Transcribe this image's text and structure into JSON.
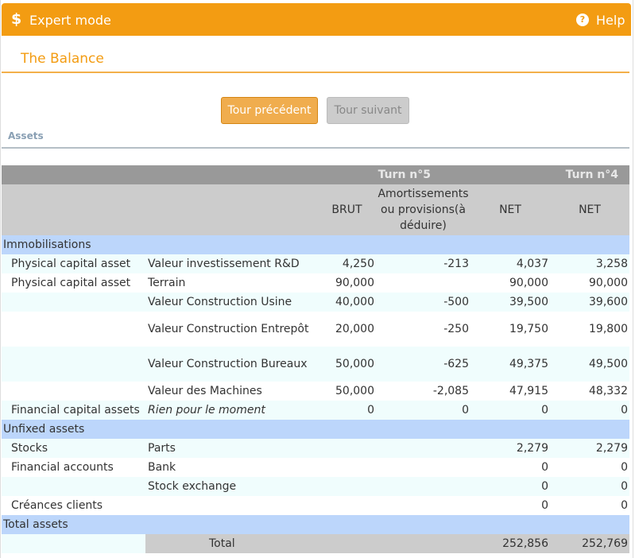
{
  "header": {
    "title": "Expert mode",
    "help": "Help"
  },
  "page_title": "The Balance",
  "buttons": {
    "prev": "Tour précédent",
    "next": "Tour suivant"
  },
  "section_label": "Assets",
  "table": {
    "turn_current": "Turn n°5",
    "turn_previous": "Turn n°4",
    "col_brut": "BRUT",
    "col_amort": "Amortissements ou provisions(à déduire)",
    "col_net": "NET",
    "col_net_prev": "NET",
    "sections": [
      {
        "name": "Immobilisations",
        "rows": [
          {
            "group": "Physical capital asset",
            "label": "Valeur investissement R&D",
            "brut": "4,250",
            "amort": "-213",
            "net": "4,037",
            "net_prev": "3,258"
          },
          {
            "group": "Physical capital asset",
            "label": "Terrain",
            "brut": "90,000",
            "amort": "",
            "net": "90,000",
            "net_prev": "90,000"
          },
          {
            "group": "",
            "label": "Valeur Construction Usine",
            "brut": "40,000",
            "amort": "-500",
            "net": "39,500",
            "net_prev": "39,600"
          },
          {
            "group": "",
            "label": "Valeur Construction Entrepôt",
            "brut": "20,000",
            "amort": "-250",
            "net": "19,750",
            "net_prev": "19,800"
          },
          {
            "group": "",
            "label": "Valeur Construction Bureaux",
            "brut": "50,000",
            "amort": "-625",
            "net": "49,375",
            "net_prev": "49,500"
          },
          {
            "group": "",
            "label": "Valeur des Machines",
            "brut": "50,000",
            "amort": "-2,085",
            "net": "47,915",
            "net_prev": "48,332"
          },
          {
            "group": "Financial capital assets",
            "label": "Rien pour le moment",
            "brut": "0",
            "amort": "0",
            "net": "0",
            "net_prev": "0"
          }
        ]
      },
      {
        "name": "Unfixed assets",
        "rows": [
          {
            "group": "Stocks",
            "label": "Parts",
            "brut": "",
            "amort": "",
            "net": "2,279",
            "net_prev": "2,279"
          },
          {
            "group": "Financial accounts",
            "label": "Bank",
            "brut": "",
            "amort": "",
            "net": "0",
            "net_prev": "0"
          },
          {
            "group": "",
            "label": "Stock exchange",
            "brut": "",
            "amort": "",
            "net": "0",
            "net_prev": "0"
          },
          {
            "group": "Créances clients",
            "label": "",
            "brut": "",
            "amort": "",
            "net": "0",
            "net_prev": "0"
          }
        ]
      },
      {
        "name": "Total assets",
        "rows": []
      }
    ],
    "total": {
      "label": "Total",
      "net": "252,856",
      "net_prev": "252,769"
    }
  },
  "colors": {
    "accent": "#f39c12",
    "section_bg": "#bcd6fb",
    "header_dark": "#999999",
    "header_light": "#cccccc"
  },
  "icons": {
    "header": "dollar-icon",
    "help": "help-circle-icon"
  }
}
